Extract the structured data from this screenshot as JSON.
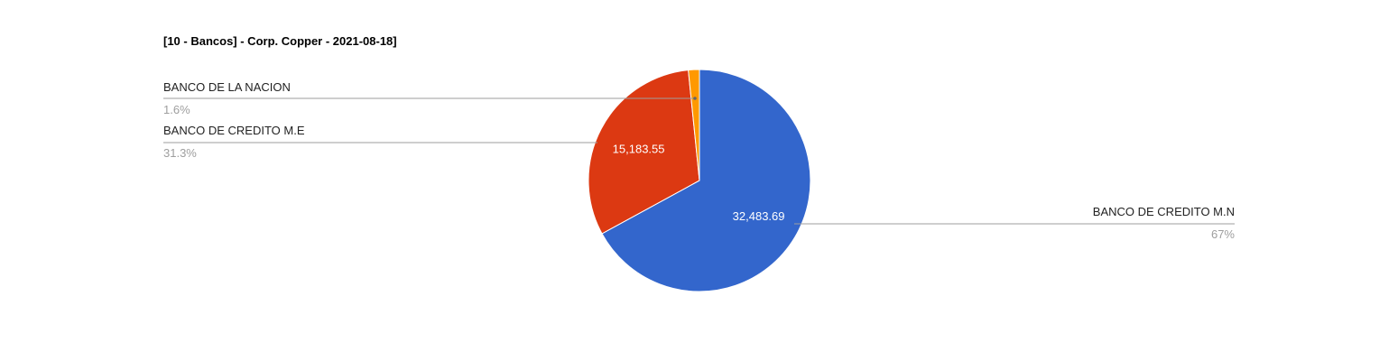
{
  "chart_data": {
    "type": "pie",
    "title": "[10 - Bancos] - Corp. Copper - 2021-08-18]",
    "legend_position": "labeled",
    "slices": [
      {
        "name": "BANCO DE CREDITO M.N",
        "value": 32483.69,
        "value_label": "32,483.69",
        "percent_label": "67%",
        "color": "#3366cc"
      },
      {
        "name": "BANCO DE CREDITO M.E",
        "value": 15183.55,
        "value_label": "15,183.55",
        "percent_label": "31.3%",
        "color": "#dc3912"
      },
      {
        "name": "BANCO DE LA NACION",
        "value": 776,
        "value_label": "",
        "percent_label": "1.6%",
        "color": "#ff9900"
      }
    ]
  }
}
